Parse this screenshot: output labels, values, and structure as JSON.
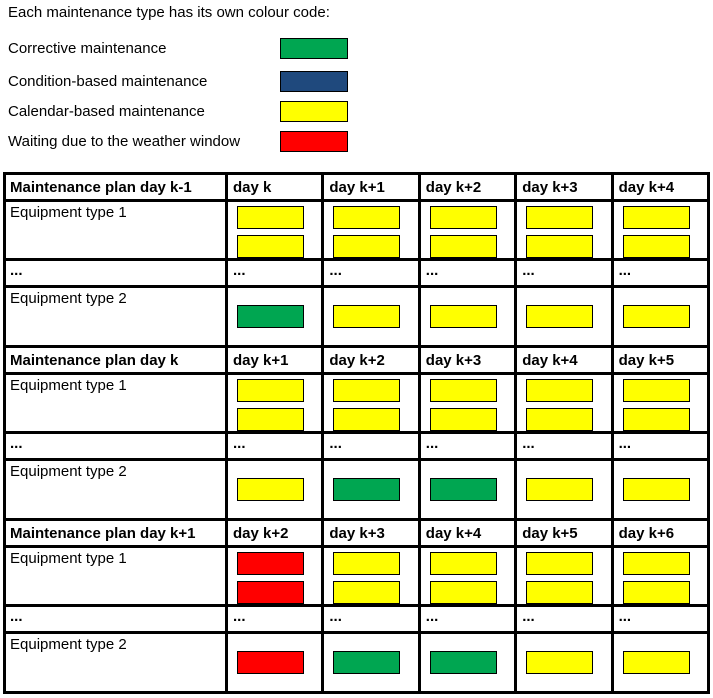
{
  "legend": {
    "title": "Each maintenance type has its own colour code:",
    "items": [
      {
        "label": "Corrective maintenance",
        "type": "corrective"
      },
      {
        "label": "Condition-based maintenance",
        "type": "condition-based"
      },
      {
        "label": "Calendar-based maintenance",
        "type": "calendar-based"
      },
      {
        "label": "Waiting due to the weather window",
        "type": "weather-waiting"
      }
    ]
  },
  "colors": {
    "corrective": "#00A651",
    "condition-based": "#1F497D",
    "calendar-based": "#FFFF00",
    "weather-waiting": "#FF0000"
  },
  "ellipsis": "...",
  "tables": [
    {
      "title": "Maintenance plan day k-1",
      "columns": [
        "day k",
        "day k+1",
        "day k+2",
        "day k+3",
        "day k+4"
      ],
      "rows": [
        {
          "kind": "equipment",
          "label": "Equipment type 1",
          "cells": [
            [
              "calendar-based",
              "calendar-based"
            ],
            [
              "calendar-based",
              "calendar-based"
            ],
            [
              "calendar-based",
              "calendar-based"
            ],
            [
              "calendar-based",
              "calendar-based"
            ],
            [
              "calendar-based",
              "calendar-based"
            ]
          ]
        },
        {
          "kind": "ellipsis",
          "label": "..."
        },
        {
          "kind": "equipment",
          "label": "Equipment type 2",
          "cells": [
            [
              "corrective"
            ],
            [
              "calendar-based"
            ],
            [
              "calendar-based"
            ],
            [
              "calendar-based"
            ],
            [
              "calendar-based"
            ]
          ]
        }
      ]
    },
    {
      "title": "Maintenance plan day k",
      "columns": [
        "day k+1",
        "day k+2",
        "day k+3",
        "day k+4",
        "day k+5"
      ],
      "rows": [
        {
          "kind": "equipment",
          "label": "Equipment type 1",
          "cells": [
            [
              "calendar-based",
              "calendar-based"
            ],
            [
              "calendar-based",
              "calendar-based"
            ],
            [
              "calendar-based",
              "calendar-based"
            ],
            [
              "calendar-based",
              "calendar-based"
            ],
            [
              "calendar-based",
              "calendar-based"
            ]
          ]
        },
        {
          "kind": "ellipsis",
          "label": "..."
        },
        {
          "kind": "equipment",
          "label": "Equipment type 2",
          "cells": [
            [
              "calendar-based"
            ],
            [
              "corrective"
            ],
            [
              "corrective"
            ],
            [
              "calendar-based"
            ],
            [
              "calendar-based"
            ]
          ]
        }
      ]
    },
    {
      "title": "Maintenance plan day k+1",
      "columns": [
        "day k+2",
        "day k+3",
        "day k+4",
        "day k+5",
        "day k+6"
      ],
      "rows": [
        {
          "kind": "equipment",
          "label": "Equipment type 1",
          "cells": [
            [
              "weather-waiting",
              "weather-waiting"
            ],
            [
              "calendar-based",
              "calendar-based"
            ],
            [
              "calendar-based",
              "calendar-based"
            ],
            [
              "calendar-based",
              "calendar-based"
            ],
            [
              "calendar-based",
              "calendar-based"
            ]
          ]
        },
        {
          "kind": "ellipsis",
          "label": "..."
        },
        {
          "kind": "equipment",
          "label": "Equipment type 2",
          "cells": [
            [
              "weather-waiting"
            ],
            [
              "corrective"
            ],
            [
              "corrective"
            ],
            [
              "calendar-based"
            ],
            [
              "calendar-based"
            ]
          ]
        }
      ]
    }
  ]
}
